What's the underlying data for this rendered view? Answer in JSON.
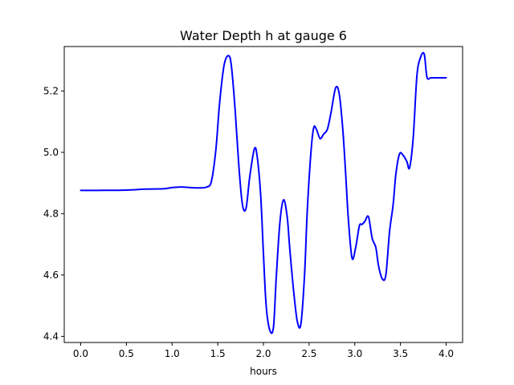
{
  "chart_data": {
    "type": "line",
    "title": "Water Depth h at gauge 6",
    "xlabel": "hours",
    "ylabel": "",
    "xlim": [
      -0.18,
      4.18
    ],
    "ylim": [
      4.38,
      5.345
    ],
    "grid": false,
    "legend": "none",
    "x_ticks": [
      0.0,
      0.5,
      1.0,
      1.5,
      2.0,
      2.5,
      3.0,
      3.5,
      4.0
    ],
    "x_tick_labels": [
      "0.0",
      "0.5",
      "1.0",
      "1.5",
      "2.0",
      "2.5",
      "3.0",
      "3.5",
      "4.0"
    ],
    "y_ticks": [
      4.4,
      4.6,
      4.8,
      5.0,
      5.2
    ],
    "y_tick_labels": [
      "4.4",
      "4.6",
      "4.8",
      "5.0",
      "5.2"
    ],
    "series": [
      {
        "color": "#0000ff",
        "x": [
          0.0,
          0.2,
          0.5,
          0.7,
          0.9,
          1.0,
          1.1,
          1.2,
          1.3,
          1.38,
          1.43,
          1.48,
          1.52,
          1.57,
          1.62,
          1.65,
          1.69,
          1.73,
          1.77,
          1.81,
          1.85,
          1.9,
          1.93,
          1.97,
          2.0,
          2.03,
          2.07,
          2.11,
          2.14,
          2.18,
          2.22,
          2.26,
          2.29,
          2.33,
          2.37,
          2.41,
          2.45,
          2.48,
          2.52,
          2.55,
          2.58,
          2.62,
          2.66,
          2.7,
          2.74,
          2.79,
          2.83,
          2.87,
          2.9,
          2.93,
          2.97,
          3.01,
          3.05,
          3.08,
          3.11,
          3.15,
          3.19,
          3.23,
          3.26,
          3.3,
          3.34,
          3.38,
          3.42,
          3.45,
          3.49,
          3.53,
          3.57,
          3.6,
          3.64,
          3.68,
          3.72,
          3.76,
          3.79,
          3.83,
          3.86,
          3.89,
          3.93,
          3.97,
          4.0
        ],
        "y": [
          4.876,
          4.876,
          4.877,
          4.88,
          4.881,
          4.885,
          4.887,
          4.885,
          4.884,
          4.887,
          4.905,
          5.01,
          5.16,
          5.285,
          5.315,
          5.28,
          5.14,
          4.96,
          4.83,
          4.818,
          4.92,
          5.01,
          4.99,
          4.86,
          4.67,
          4.5,
          4.42,
          4.43,
          4.59,
          4.77,
          4.845,
          4.79,
          4.68,
          4.55,
          4.45,
          4.44,
          4.6,
          4.81,
          5.0,
          5.08,
          5.075,
          5.045,
          5.06,
          5.075,
          5.13,
          5.21,
          5.19,
          5.07,
          4.93,
          4.78,
          4.655,
          4.69,
          4.76,
          4.765,
          4.775,
          4.79,
          4.72,
          4.69,
          4.63,
          4.588,
          4.6,
          4.74,
          4.83,
          4.93,
          4.995,
          4.99,
          4.97,
          4.95,
          5.05,
          5.25,
          5.31,
          5.32,
          5.245,
          5.243,
          5.243,
          5.243,
          5.243,
          5.243,
          5.243
        ]
      }
    ]
  }
}
